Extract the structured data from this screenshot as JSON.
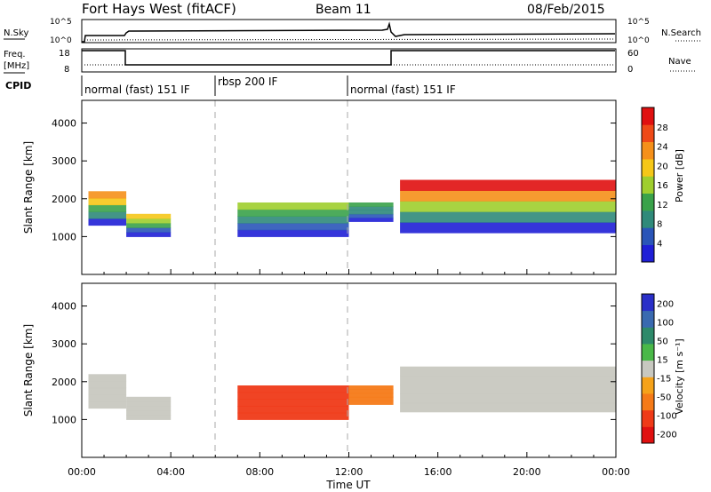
{
  "header": {
    "station": "Fort Hays West (fitACF)",
    "beam": "Beam 11",
    "date": "08/Feb/2015"
  },
  "strips": {
    "nsky_label": "N.Sky",
    "nsearch_label": "N.Search",
    "freq_label": "Freq.",
    "freq_unit": "[MHz]",
    "nave_label": "Nave",
    "cpid_label": "CPID",
    "noise_ticks": [
      "10^5",
      "10^0"
    ],
    "freq_ticks": [
      "18",
      "8"
    ],
    "nave_ticks": [
      "60",
      "0"
    ]
  },
  "cpid": [
    {
      "start": 0,
      "end": 6,
      "label": "normal (fast) 151 IF"
    },
    {
      "start": 6,
      "end": 12,
      "label": "rbsp 200 IF"
    },
    {
      "start": 12,
      "end": 24,
      "label": "normal (fast) 151 IF"
    }
  ],
  "chart_data": [
    {
      "type": "heatmap",
      "name": "Power",
      "ylabel": "Slant Range [km]",
      "xlabel": "Time UT",
      "xlim": [
        0,
        24
      ],
      "ylim": [
        0,
        4600
      ],
      "yticks": [
        "1000",
        "2000",
        "3000",
        "4000"
      ],
      "xticks": [
        "00:00",
        "04:00",
        "08:00",
        "12:00",
        "16:00",
        "20:00",
        "00:00"
      ],
      "colorbar": {
        "label": "Power [dB]",
        "range": [
          0,
          32
        ],
        "ticks": [
          "4",
          "8",
          "12",
          "16",
          "20",
          "24",
          "28"
        ],
        "colors": [
          "#1f1fd6",
          "#2a55b8",
          "#2f8a7a",
          "#3aa24a",
          "#9fce2e",
          "#f5c718",
          "#f5901a",
          "#ef4a18",
          "#e01010"
        ]
      },
      "echo_regions": [
        {
          "t_start": 0.3,
          "t_end": 2.0,
          "range_low": 1300,
          "range_high": 2200,
          "peak_db": 22
        },
        {
          "t_start": 2.0,
          "t_end": 4.0,
          "range_low": 1000,
          "range_high": 1600,
          "peak_db": 20
        },
        {
          "t_start": 7.0,
          "t_end": 12.0,
          "range_low": 1000,
          "range_high": 1900,
          "peak_db": 16
        },
        {
          "t_start": 12.0,
          "t_end": 14.0,
          "range_low": 1400,
          "range_high": 1900,
          "peak_db": 10
        },
        {
          "t_start": 14.3,
          "t_end": 24.0,
          "range_low": 1100,
          "range_high": 2500,
          "peak_db": 30
        }
      ]
    },
    {
      "type": "heatmap",
      "name": "Velocity",
      "ylabel": "Slant Range [km]",
      "xlabel": "Time UT",
      "xlim": [
        0,
        24
      ],
      "ylim": [
        0,
        4600
      ],
      "yticks": [
        "1000",
        "2000",
        "3000",
        "4000"
      ],
      "xticks": [
        "00:00",
        "04:00",
        "08:00",
        "12:00",
        "16:00",
        "20:00",
        "00:00"
      ],
      "colorbar": {
        "label": "Velocity [m s⁻¹]",
        "ticks": [
          "200",
          "100",
          "50",
          "15",
          "-15",
          "-50",
          "-100",
          "-200"
        ],
        "colors": [
          "#2a2fc8",
          "#3a6ab0",
          "#2e8a6a",
          "#4ab848",
          "#c8c8c0",
          "#f5a21a",
          "#f57a18",
          "#ef3a18",
          "#e01010"
        ]
      },
      "echo_regions": [
        {
          "t_start": 0.3,
          "t_end": 2.0,
          "range_low": 1300,
          "range_high": 2200,
          "velocity": 0
        },
        {
          "t_start": 2.0,
          "t_end": 4.0,
          "range_low": 1000,
          "range_high": 1600,
          "velocity": 0
        },
        {
          "t_start": 7.0,
          "t_end": 12.0,
          "range_low": 1000,
          "range_high": 1900,
          "velocity": -110
        },
        {
          "t_start": 12.0,
          "t_end": 14.0,
          "range_low": 1400,
          "range_high": 1900,
          "velocity": -50
        },
        {
          "t_start": 14.3,
          "t_end": 24.0,
          "range_low": 1200,
          "range_high": 2400,
          "velocity": 0
        }
      ]
    }
  ]
}
